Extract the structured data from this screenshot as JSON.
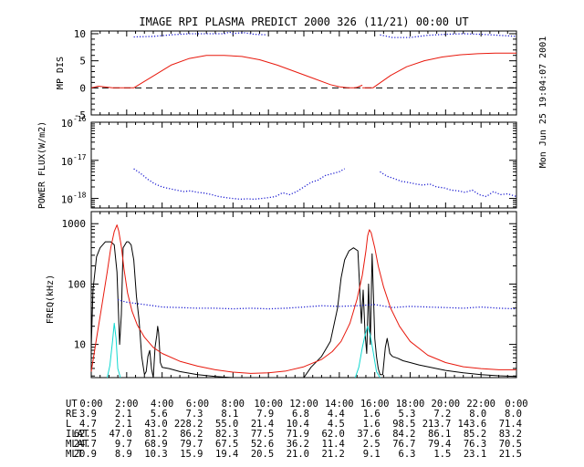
{
  "title": "IMAGE  RPI PLASMA PREDICT 2000 326 (11/21) 00:00 UT",
  "timestamp": "Mon Jun 25 19:04:07 2001",
  "colors": {
    "axes": "#000000",
    "red": "#e8180c",
    "blue": "#1e1ed2",
    "cyan": "#10d8d0",
    "black": "#000000"
  },
  "chart_data": [
    {
      "type": "line",
      "panel": "mp-dis",
      "ylabel": "MP DIS",
      "xlim": [
        0,
        24
      ],
      "ylim": [
        -5,
        10.5
      ],
      "yticks": [
        10,
        5,
        0,
        -5
      ],
      "ytick_labels": [
        "10",
        "5",
        "0",
        "-5"
      ],
      "reference_line": {
        "y": 0,
        "style": "dashed"
      },
      "series": [
        {
          "name": "magnetopause-distance",
          "color": "red",
          "style": "solid",
          "segments": [
            {
              "x": [
                0,
                0.4,
                1.2,
                2.4,
                3.5,
                4.5,
                5.5,
                6.5,
                7.5,
                8.5,
                9.5,
                10.5,
                11.5,
                12.5,
                13.5,
                14.0,
                14.5,
                14.85,
                15.0,
                15.3
              ],
              "y": [
                0,
                0.3,
                0,
                0,
                2.2,
                4.2,
                5.4,
                6.0,
                6.0,
                5.8,
                5.2,
                4.2,
                3.0,
                1.8,
                0.6,
                0.2,
                0,
                0,
                0.1,
                0.5
              ]
            },
            {
              "x": [
                15.3,
                15.9,
                16.9,
                17.8,
                18.8,
                19.8,
                20.8,
                21.8,
                22.8,
                23.6,
                24.0
              ],
              "y": [
                0,
                0,
                2.3,
                3.9,
                5.0,
                5.7,
                6.1,
                6.3,
                6.4,
                6.4,
                6.4
              ]
            }
          ]
        },
        {
          "name": "model-distance",
          "color": "blue",
          "style": "dotted",
          "segments": [
            {
              "x": [
                2.4,
                3.5,
                4.5,
                5.5,
                6.5,
                7.5,
                7.8,
                8.0,
                8.2,
                8.6,
                9.2,
                9.9
              ],
              "y": [
                9.4,
                9.5,
                9.8,
                10.0,
                10.0,
                10.0,
                10.3,
                10.0,
                10.1,
                10.2,
                9.9,
                9.8
              ]
            },
            {
              "x": [
                16.3,
                17.0,
                18.0,
                19.0,
                20.0,
                21.0,
                22.0,
                23.0,
                24.0
              ],
              "y": [
                9.8,
                9.3,
                9.3,
                9.7,
                9.9,
                10.0,
                9.9,
                9.7,
                9.5
              ]
            }
          ]
        }
      ]
    },
    {
      "type": "scatter",
      "panel": "power-flux",
      "ylabel": "POWER FLUX(W/m2)",
      "yscale": "log",
      "ylim": [
        -18.25,
        -16.0
      ],
      "yticks": [
        -16,
        -17,
        -18
      ],
      "ytick_labels": [
        "10",
        "10",
        "10"
      ],
      "ytick_exponents": [
        "-16",
        "-17",
        "-18"
      ],
      "series": [
        {
          "name": "power-flux",
          "color": "blue",
          "style": "dotted",
          "segments": [
            {
              "x": [
                2.4,
                2.8,
                3.2,
                3.6,
                4.0,
                4.4,
                4.8,
                5.2,
                5.6,
                6.0,
                6.4,
                6.8,
                7.2,
                7.6,
                8.0,
                8.4,
                8.8,
                9.2,
                9.6,
                10.0,
                10.4,
                10.8,
                11.2,
                11.6,
                12.0,
                12.4,
                12.8,
                13.2,
                13.6,
                14.0,
                14.3
              ],
              "y": [
                -17.22,
                -17.35,
                -17.5,
                -17.62,
                -17.7,
                -17.74,
                -17.78,
                -17.82,
                -17.8,
                -17.84,
                -17.86,
                -17.9,
                -17.95,
                -17.98,
                -18.0,
                -18.02,
                -18.01,
                -18.02,
                -18.0,
                -17.98,
                -17.95,
                -17.85,
                -17.9,
                -17.82,
                -17.7,
                -17.58,
                -17.52,
                -17.4,
                -17.35,
                -17.3,
                -17.22
              ]
            },
            {
              "x": [
                16.3,
                16.7,
                17.1,
                17.5,
                17.9,
                18.3,
                18.7,
                19.1,
                19.5,
                19.9,
                20.3,
                20.7,
                21.1,
                21.5,
                21.9,
                22.3,
                22.7,
                23.1,
                23.5,
                24.0
              ],
              "y": [
                -17.3,
                -17.42,
                -17.48,
                -17.55,
                -17.58,
                -17.62,
                -17.65,
                -17.62,
                -17.7,
                -17.72,
                -17.78,
                -17.8,
                -17.84,
                -17.78,
                -17.9,
                -17.95,
                -17.82,
                -17.9,
                -17.88,
                -17.95
              ]
            }
          ]
        }
      ]
    },
    {
      "type": "line",
      "panel": "frequency",
      "ylabel": "FREQ(kHz)",
      "yscale": "log",
      "ylim": [
        0.45,
        3.2
      ],
      "yticks": [
        3,
        2,
        1
      ],
      "ytick_labels": [
        "1000",
        "100",
        "10"
      ],
      "xticks": [
        0,
        2,
        4,
        6,
        8,
        10,
        12,
        14,
        16,
        18,
        20,
        22,
        24
      ],
      "series": [
        {
          "name": "plasma-frequency",
          "color": "black",
          "style": "solid",
          "segments": [
            {
              "x": [
                0.0,
                0.1,
                0.3,
                0.5,
                0.8,
                1.1,
                1.3,
                1.45,
                1.6,
                1.7,
                1.8,
                2.0,
                2.1,
                2.25,
                2.4,
                2.55,
                2.7,
                2.85,
                3.0,
                3.1,
                3.2,
                3.3,
                3.4,
                3.5,
                3.6,
                3.7,
                3.75,
                3.8,
                3.85,
                3.9,
                4.0,
                4.4,
                5.0,
                6.0,
                7.0,
                8.0,
                9.0,
                10.0,
                11.0,
                12.0
              ],
              "y": [
                0.95,
                1.9,
                2.45,
                2.6,
                2.7,
                2.7,
                2.65,
                2.2,
                1.0,
                1.5,
                2.6,
                2.7,
                2.7,
                2.65,
                2.4,
                1.8,
                1.4,
                0.8,
                0.5,
                0.55,
                0.8,
                0.9,
                0.6,
                0.45,
                0.95,
                1.15,
                1.3,
                1.2,
                0.95,
                0.7,
                0.62,
                0.6,
                0.55,
                0.5,
                0.47,
                0.45,
                0.45,
                0.45,
                0.45,
                0.45
              ]
            },
            {
              "x": [
                12.0,
                12.4,
                13.0,
                13.5,
                13.9,
                14.1,
                14.3,
                14.55,
                14.8,
                15.05,
                15.25,
                15.35,
                15.45,
                15.55,
                15.65,
                15.75,
                15.85,
                15.95,
                16.0,
                16.1,
                16.2,
                16.3,
                16.45,
                16.6,
                16.7,
                16.85,
                17.0,
                17.3,
                17.6,
                18.0,
                18.5,
                19.0,
                20.0,
                21.0,
                22.0,
                23.0,
                24.0
              ],
              "y": [
                0.45,
                0.62,
                0.8,
                1.05,
                1.6,
                2.1,
                2.4,
                2.55,
                2.6,
                2.55,
                1.35,
                1.9,
                1.2,
                0.85,
                2.0,
                1.0,
                2.5,
                1.6,
                1.1,
                0.8,
                0.6,
                0.5,
                0.5,
                0.95,
                1.1,
                0.85,
                0.8,
                0.77,
                0.73,
                0.7,
                0.66,
                0.63,
                0.57,
                0.53,
                0.5,
                0.48,
                0.47
              ]
            }
          ]
        },
        {
          "name": "gyrofrequency",
          "color": "red",
          "style": "solid",
          "segments": [
            {
              "x": [
                0.0,
                0.3,
                0.6,
                0.9,
                1.1,
                1.3,
                1.45,
                1.55,
                1.7,
                1.85,
                2.05,
                2.3,
                2.6,
                3.0,
                3.5,
                4.0,
                5.0,
                6.0,
                7.0,
                8.0,
                9.0,
                10.0,
                11.0,
                12.0,
                13.0,
                13.6,
                14.1,
                14.6,
                15.0,
                15.3,
                15.5,
                15.6,
                15.7,
                15.8,
                16.0,
                16.2,
                16.5,
                16.9,
                17.4,
                18.0,
                19.0,
                20.0,
                21.0,
                22.0,
                23.0,
                24.0
              ],
              "y": [
                0.55,
                1.1,
                1.65,
                2.2,
                2.6,
                2.87,
                2.98,
                2.88,
                2.62,
                2.25,
                1.85,
                1.55,
                1.32,
                1.12,
                0.95,
                0.85,
                0.72,
                0.64,
                0.58,
                0.54,
                0.52,
                0.53,
                0.56,
                0.63,
                0.75,
                0.88,
                1.05,
                1.35,
                1.75,
                2.15,
                2.55,
                2.8,
                2.9,
                2.85,
                2.6,
                2.3,
                1.95,
                1.6,
                1.3,
                1.05,
                0.82,
                0.7,
                0.63,
                0.6,
                0.58,
                0.58
              ]
            }
          ]
        },
        {
          "name": "electron-cyclotron",
          "color": "cyan",
          "style": "solid",
          "segments": [
            {
              "x": [
                0.9,
                1.05,
                1.2,
                1.3,
                1.4,
                1.5,
                1.65
              ],
              "y": [
                0.45,
                0.65,
                1.05,
                1.35,
                1.1,
                0.6,
                0.45
              ]
            },
            {
              "x": [
                14.9,
                15.1,
                15.3,
                15.45,
                15.6,
                15.75,
                15.9,
                16.1,
                16.3
              ],
              "y": [
                0.45,
                0.62,
                0.95,
                1.15,
                1.3,
                1.15,
                0.9,
                0.55,
                0.45
              ]
            }
          ]
        },
        {
          "name": "upper-hybrid",
          "color": "blue",
          "style": "dotted",
          "segments": [
            {
              "x": [
                1.5,
                2.0,
                2.5,
                3.0,
                3.5,
                4.0,
                5.0,
                6.0,
                7.0,
                8.0,
                9.0,
                10.0,
                11.0,
                12.0,
                13.0,
                14.0,
                15.0,
                16.0,
                17.0,
                18.0,
                19.0,
                20.0,
                21.0,
                22.0,
                23.0,
                24.0
              ],
              "y": [
                1.74,
                1.7,
                1.68,
                1.66,
                1.64,
                1.62,
                1.61,
                1.6,
                1.6,
                1.59,
                1.6,
                1.59,
                1.6,
                1.62,
                1.64,
                1.63,
                1.64,
                1.66,
                1.61,
                1.63,
                1.62,
                1.61,
                1.6,
                1.62,
                1.6,
                1.59
              ]
            }
          ]
        }
      ]
    }
  ],
  "ephemeris": {
    "rows": [
      {
        "label": "UT",
        "values": [
          "0:00",
          "2:00",
          "4:00",
          "6:00",
          "8:00",
          "10:00",
          "12:00",
          "14:00",
          "16:00",
          "18:00",
          "20:00",
          "22:00",
          "0:00"
        ]
      },
      {
        "label": "RE",
        "values": [
          "3.9",
          "2.1",
          "5.6",
          "7.3",
          "8.1",
          "7.9",
          "6.8",
          "4.4",
          "1.6",
          "5.3",
          "7.2",
          "8.0",
          "8.0"
        ]
      },
      {
        "label": "L",
        "values": [
          "4.7",
          "2.1",
          "43.0",
          "228.2",
          "55.0",
          "21.4",
          "10.4",
          "4.5",
          "1.6",
          "98.5",
          "213.7",
          "143.6",
          "71.4"
        ]
      },
      {
        "label": "ILAT",
        "values": [
          "62.5",
          "47.0",
          "81.2",
          "86.2",
          "82.3",
          "77.5",
          "71.9",
          "62.0",
          "37.6",
          "84.2",
          "86.1",
          "85.2",
          "83.2"
        ]
      },
      {
        "label": "MLAT",
        "values": [
          "24.7",
          "9.7",
          "68.9",
          "79.7",
          "67.5",
          "52.6",
          "36.2",
          "11.4",
          "2.5",
          "76.7",
          "79.4",
          "76.3",
          "70.5"
        ]
      },
      {
        "label": "MLT",
        "values": [
          "20.9",
          "8.9",
          "10.3",
          "15.9",
          "19.4",
          "20.5",
          "21.0",
          "21.2",
          "9.1",
          "6.3",
          "1.5",
          "23.1",
          "21.5"
        ]
      }
    ]
  }
}
